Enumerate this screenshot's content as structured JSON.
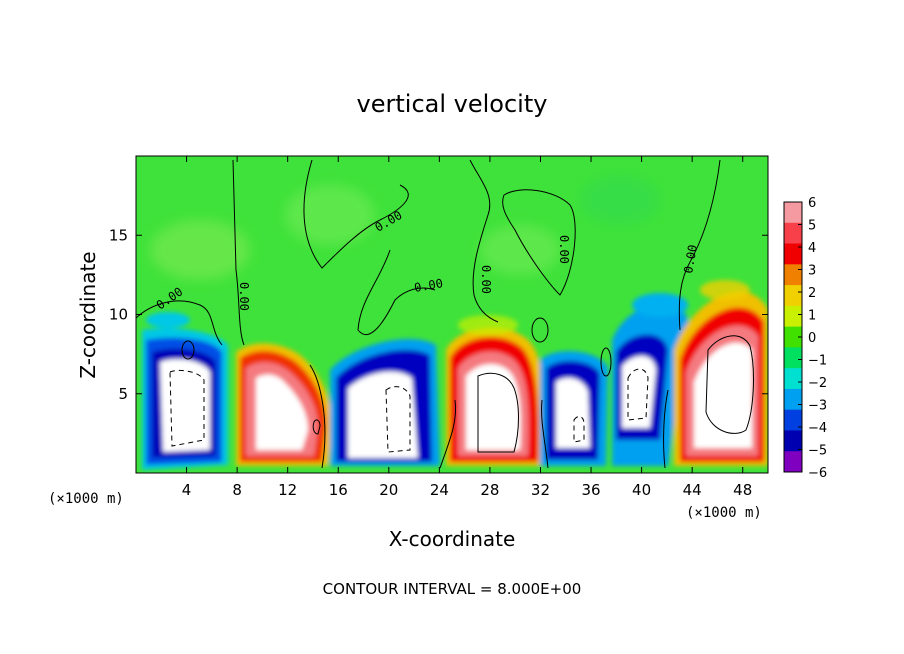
{
  "chart_data": {
    "type": "heatmap",
    "title": "vertical velocity",
    "xlabel": "X-coordinate",
    "ylabel": "Z-coordinate",
    "x_unit_left": "(×1000 m)",
    "x_unit_right": "(×1000 m)",
    "xlim": [
      0,
      50
    ],
    "ylim": [
      0,
      20
    ],
    "xticks": [
      4,
      8,
      12,
      16,
      20,
      24,
      28,
      32,
      36,
      40,
      44,
      48
    ],
    "yticks": [
      5,
      10,
      15
    ],
    "colorbar": {
      "ticks": [
        6,
        5,
        4,
        3,
        2,
        1,
        0,
        -1,
        -2,
        -3,
        -4,
        -5,
        -6
      ],
      "range": [
        -6,
        6
      ],
      "colors": [
        "#f59aa0",
        "#f7404a",
        "#f00000",
        "#f08000",
        "#f0d000",
        "#c8f000",
        "#40e000",
        "#00e060",
        "#00e0d0",
        "#00a0f0",
        "#0040e0",
        "#0000b0",
        "#8000c0"
      ]
    },
    "contour_label": "0.00",
    "contour_interval_text": "CONTOUR INTERVAL = 8.000E+00",
    "cells": [
      {
        "x": 3.5,
        "z": 5,
        "sign": "down"
      },
      {
        "x": 10.5,
        "z": 4,
        "sign": "up"
      },
      {
        "x": 14,
        "z": 3,
        "sign": "up"
      },
      {
        "x": 19,
        "z": 4,
        "sign": "down"
      },
      {
        "x": 28.5,
        "z": 4.5,
        "sign": "up"
      },
      {
        "x": 34,
        "z": 4,
        "sign": "down"
      },
      {
        "x": 39.5,
        "z": 5,
        "sign": "down"
      },
      {
        "x": 47.5,
        "z": 5,
        "sign": "up"
      }
    ]
  }
}
